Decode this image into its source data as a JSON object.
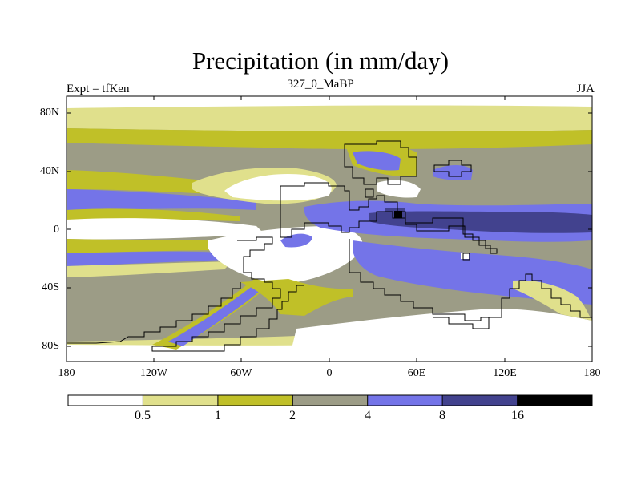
{
  "title": "Precipitation (in mm/day)",
  "left_label": "Expt = tfKen",
  "center_label": "327_0_MaBP",
  "right_label": "JJA",
  "lat_labels": [
    "80N",
    "40N",
    "0",
    "40S",
    "80S"
  ],
  "lon_labels": [
    "180",
    "120W",
    "60W",
    "0",
    "60E",
    "120E",
    "180"
  ],
  "colorbar": {
    "levels": [
      "0.5",
      "1",
      "2",
      "4",
      "8",
      "16"
    ],
    "colors": [
      "#ffffff",
      "#e0e08c",
      "#c0c028",
      "#9c9c86",
      "#7474e8",
      "#42428e",
      "#000000"
    ]
  }
}
